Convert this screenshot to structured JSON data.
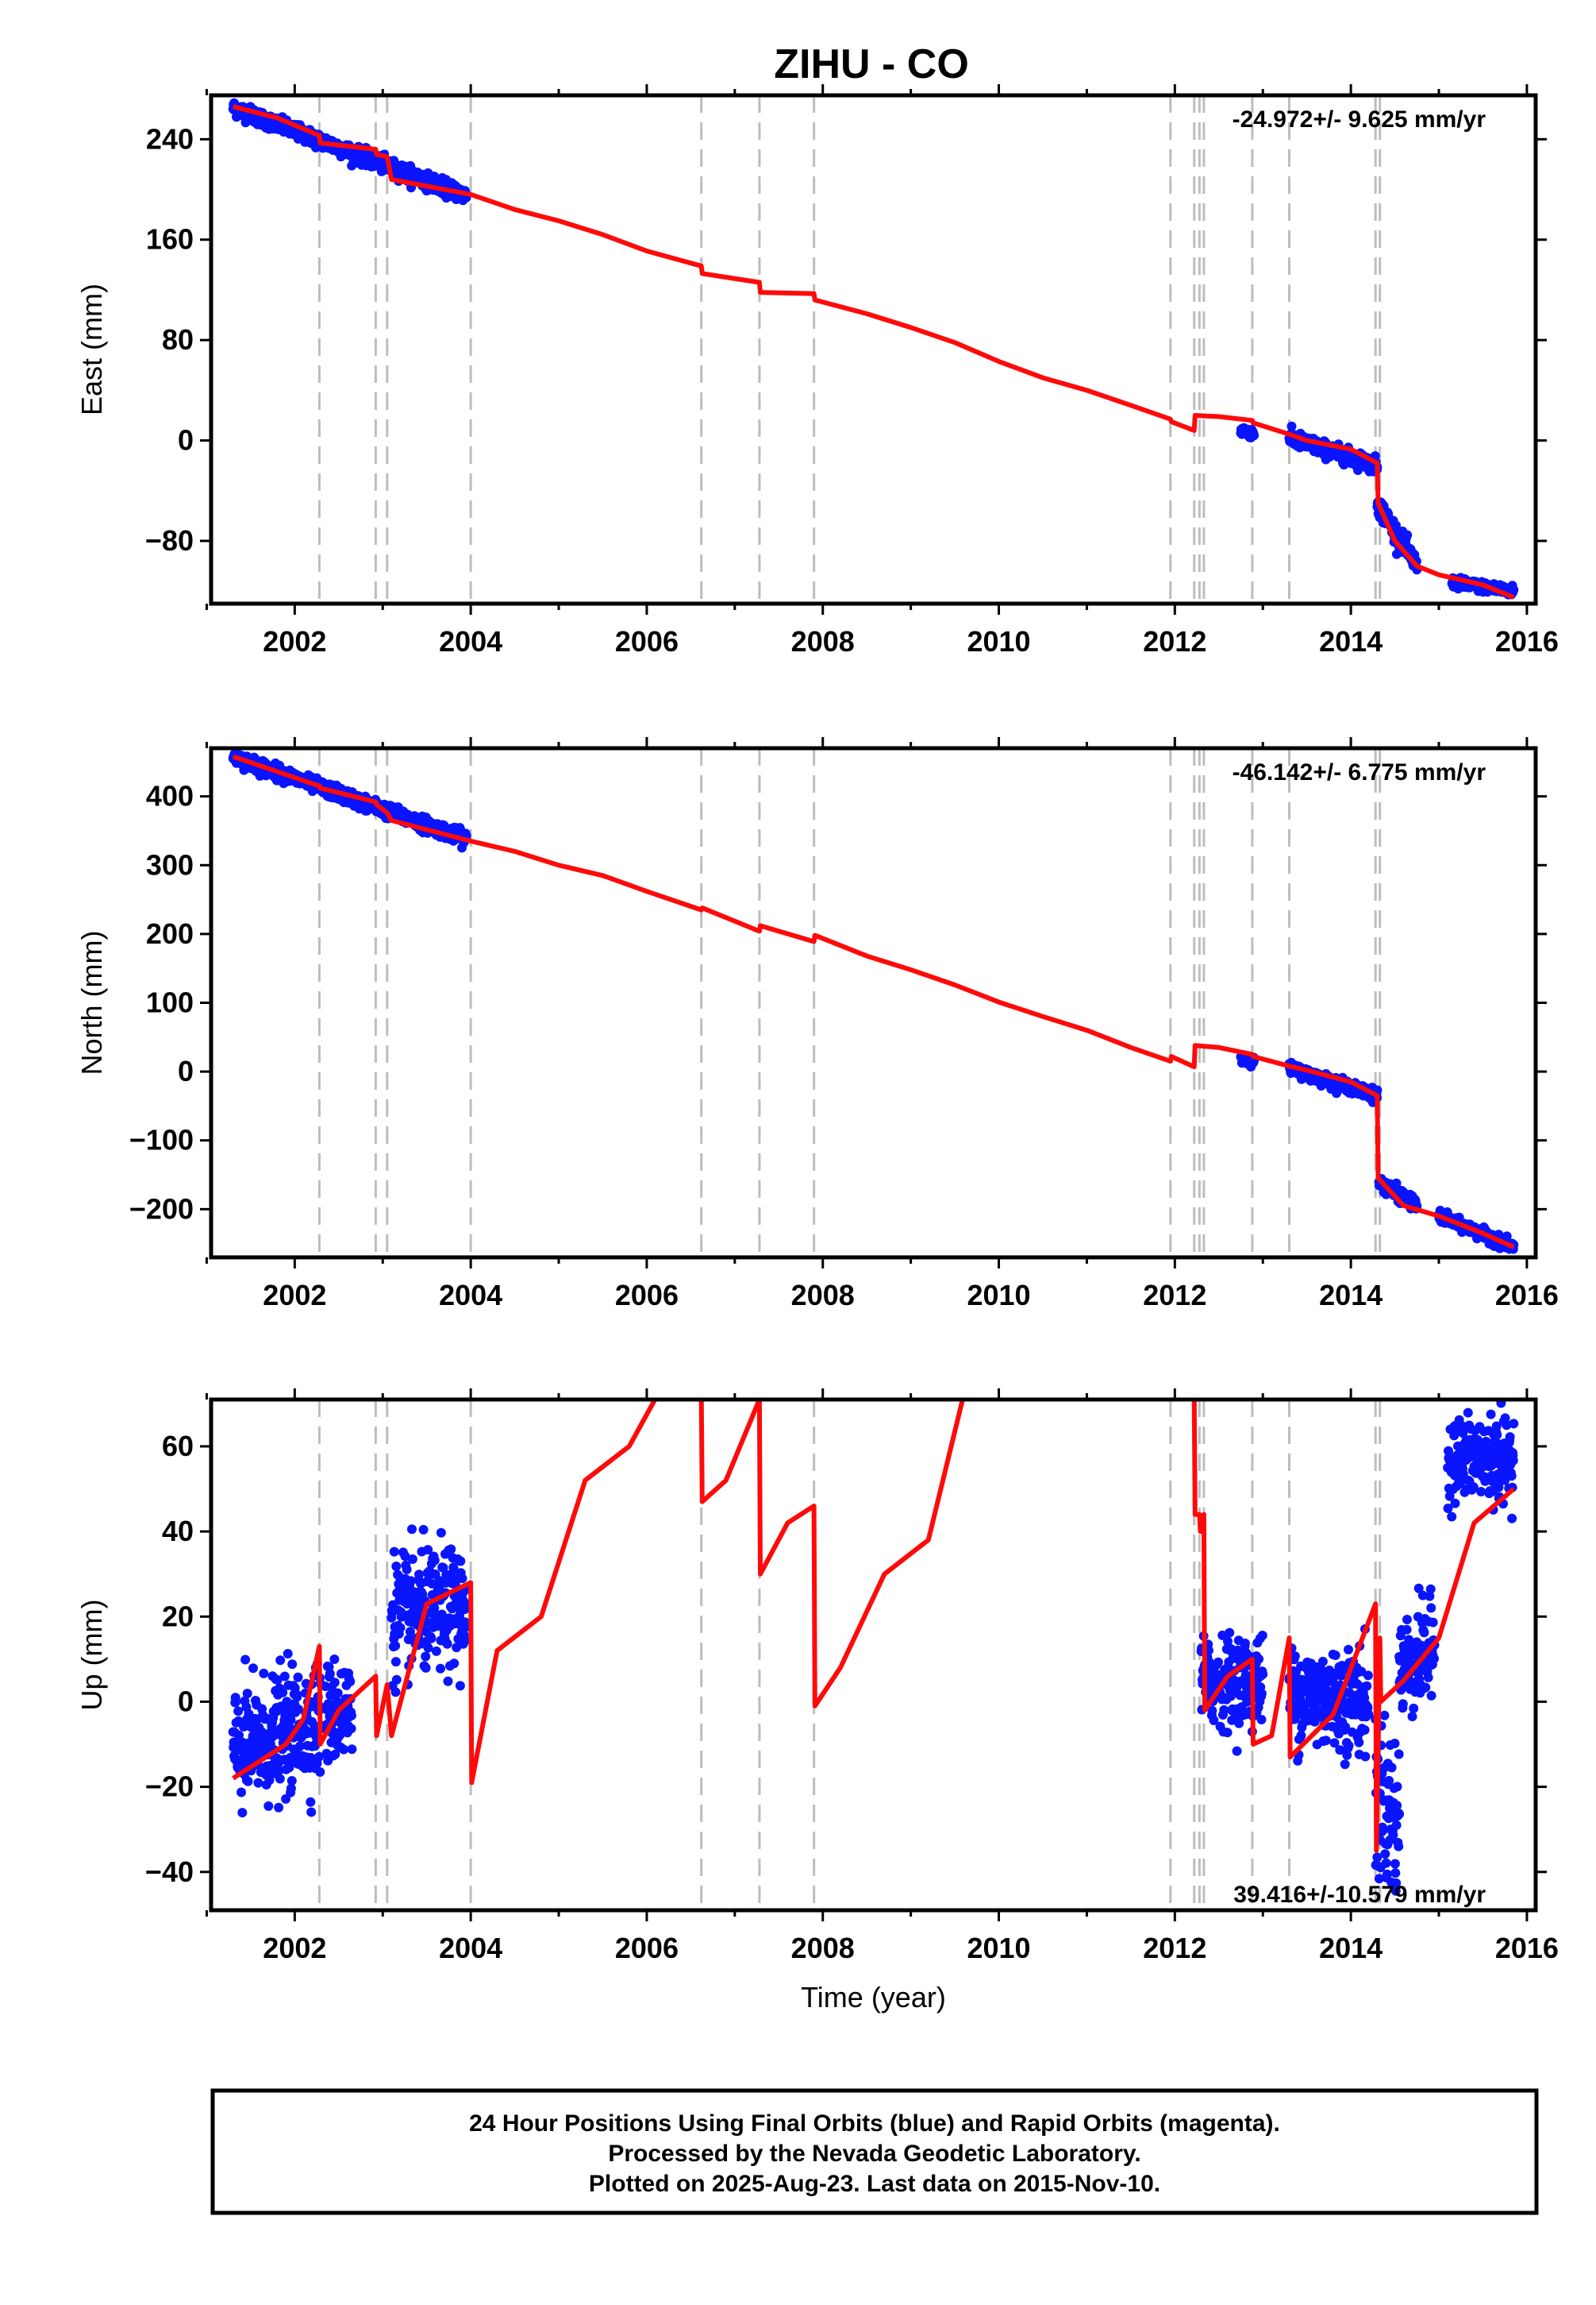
{
  "title": "ZIHU - CO",
  "footer": {
    "line1": "24 Hour Positions Using Final Orbits (blue) and Rapid Orbits (magenta).",
    "line2": "Processed by the Nevada Geodetic Laboratory.",
    "line3": "Plotted on 2025-Aug-23. Last data on 2015-Nov-10."
  },
  "colors": {
    "data": "#0a14ff",
    "model": "#ff0a0a",
    "event_line": "#bdbdbd",
    "frame": "#000000"
  },
  "chart_data": [
    {
      "type": "scatter",
      "ylabel": "East (mm)",
      "xlabel": "",
      "xlim": [
        2001.05,
        2016.1
      ],
      "ylim": [
        -130,
        275
      ],
      "x_ticks": [
        2002,
        2004,
        2006,
        2008,
        2010,
        2012,
        2014,
        2016
      ],
      "y_ticks": [
        -80,
        0,
        80,
        160,
        240
      ],
      "rate_label": "-24.972+/- 9.625 mm/yr",
      "rate_position": "top-right",
      "event_lines": [
        2002.28,
        2002.92,
        2003.05,
        2004.0,
        2006.62,
        2007.28,
        2007.9,
        2011.95,
        2012.22,
        2012.28,
        2012.33,
        2012.88,
        2013.3,
        2014.28,
        2014.33
      ],
      "series": [
        {
          "role": "data",
          "segments": [
            {
              "x": [
                2001.3,
                2003.95
              ],
              "y": [
                265,
                195
              ],
              "noise": 3
            },
            {
              "x": [
                2012.75,
                2012.9
              ],
              "y": [
                8,
                6
              ],
              "noise": 2
            },
            {
              "x": [
                2013.3,
                2014.3
              ],
              "y": [
                2,
                -20
              ],
              "noise": 3
            },
            {
              "x": [
                2014.3,
                2014.75
              ],
              "y": [
                -50,
                -100
              ],
              "noise": 4
            },
            {
              "x": [
                2015.15,
                2015.85
              ],
              "y": [
                -113,
                -120
              ],
              "noise": 2
            }
          ]
        },
        {
          "role": "model",
          "x": [
            2001.3,
            2001.8,
            2002.28,
            2002.29,
            2002.92,
            2002.93,
            2003.05,
            2003.1,
            2004.0,
            2004.5,
            2005.0,
            2005.5,
            2006.0,
            2006.62,
            2006.63,
            2007.28,
            2007.29,
            2007.9,
            2007.91,
            2008.5,
            2009.0,
            2009.5,
            2010.0,
            2010.5,
            2011.0,
            2011.5,
            2011.95,
            2011.96,
            2012.22,
            2012.23,
            2012.5,
            2012.88,
            2012.89,
            2013.3,
            2013.5,
            2014.0,
            2014.3,
            2014.31,
            2014.5,
            2014.75,
            2015.0,
            2015.5,
            2015.85
          ],
          "y": [
            266,
            257,
            243,
            237,
            232,
            228,
            226,
            208,
            196,
            184,
            175,
            164,
            151,
            139,
            133,
            126,
            118,
            117,
            112,
            101,
            90,
            78,
            63,
            50,
            40,
            28,
            17,
            15,
            8,
            20,
            19,
            16,
            14,
            5,
            0,
            -7,
            -18,
            -50,
            -80,
            -100,
            -107,
            -115,
            -125
          ]
        }
      ]
    },
    {
      "type": "scatter",
      "ylabel": "North (mm)",
      "xlabel": "",
      "xlim": [
        2001.05,
        2016.1
      ],
      "ylim": [
        -270,
        470
      ],
      "x_ticks": [
        2002,
        2004,
        2006,
        2008,
        2010,
        2012,
        2014,
        2016
      ],
      "y_ticks": [
        -200,
        -100,
        0,
        100,
        200,
        300,
        400
      ],
      "rate_label": "-46.142+/- 6.775 mm/yr",
      "rate_position": "top-right",
      "event_lines": [
        2002.28,
        2002.92,
        2003.05,
        2004.0,
        2006.62,
        2007.28,
        2007.9,
        2011.95,
        2012.22,
        2012.28,
        2012.33,
        2012.88,
        2013.3,
        2014.28,
        2014.33
      ],
      "series": [
        {
          "role": "data",
          "segments": [
            {
              "x": [
                2001.3,
                2003.95
              ],
              "y": [
                458,
                338
              ],
              "noise": 5
            },
            {
              "x": [
                2012.75,
                2012.9
              ],
              "y": [
                20,
                15
              ],
              "noise": 3
            },
            {
              "x": [
                2013.3,
                2014.3
              ],
              "y": [
                5,
                -35
              ],
              "noise": 4
            },
            {
              "x": [
                2014.32,
                2014.75
              ],
              "y": [
                -160,
                -195
              ],
              "noise": 5
            },
            {
              "x": [
                2015.0,
                2015.85
              ],
              "y": [
                -210,
                -255
              ],
              "noise": 4
            }
          ]
        },
        {
          "role": "model",
          "x": [
            2001.3,
            2002.28,
            2002.29,
            2002.92,
            2002.93,
            2003.05,
            2003.1,
            2004.0,
            2004.5,
            2005.0,
            2005.5,
            2006.0,
            2006.62,
            2006.63,
            2007.28,
            2007.29,
            2007.9,
            2007.91,
            2008.5,
            2009.0,
            2009.5,
            2010.0,
            2010.5,
            2011.0,
            2011.5,
            2011.95,
            2011.96,
            2012.22,
            2012.23,
            2012.5,
            2012.88,
            2012.89,
            2013.3,
            2013.5,
            2014.0,
            2014.3,
            2014.31,
            2014.6,
            2015.0,
            2015.5,
            2015.85
          ],
          "y": [
            458,
            415,
            412,
            392,
            388,
            376,
            365,
            335,
            320,
            300,
            285,
            262,
            235,
            238,
            204,
            212,
            189,
            198,
            168,
            148,
            126,
            101,
            80,
            60,
            35,
            15,
            22,
            7,
            38,
            35,
            25,
            22,
            8,
            2,
            -15,
            -35,
            -155,
            -195,
            -210,
            -235,
            -255
          ]
        }
      ]
    },
    {
      "type": "scatter",
      "ylabel": "Up (mm)",
      "xlabel": "Time (year)",
      "xlim": [
        2001.05,
        2016.1
      ],
      "ylim": [
        -49,
        71
      ],
      "x_ticks": [
        2002,
        2004,
        2006,
        2008,
        2010,
        2012,
        2014,
        2016
      ],
      "y_ticks": [
        -40,
        -20,
        0,
        20,
        40,
        60
      ],
      "rate_label": "39.416+/-10.579 mm/yr",
      "rate_position": "bottom-right",
      "event_lines": [
        2002.28,
        2002.92,
        2003.05,
        2004.0,
        2006.62,
        2007.28,
        2007.9,
        2011.95,
        2012.22,
        2012.28,
        2012.33,
        2012.88,
        2013.3,
        2014.28,
        2014.33
      ],
      "series": [
        {
          "role": "data",
          "segments": [
            {
              "x": [
                2001.3,
                2002.3
              ],
              "y": [
                -12,
                -4
              ],
              "noise": 7
            },
            {
              "x": [
                2002.35,
                2002.65
              ],
              "y": [
                -3,
                -2
              ],
              "noise": 6
            },
            {
              "x": [
                2003.1,
                2003.95
              ],
              "y": [
                20,
                22
              ],
              "noise": 7
            },
            {
              "x": [
                2012.3,
                2013.0
              ],
              "y": [
                5,
                5
              ],
              "noise": 5
            },
            {
              "x": [
                2013.3,
                2014.2
              ],
              "y": [
                2,
                0
              ],
              "noise": 6
            },
            {
              "x": [
                2014.28,
                2014.55
              ],
              "y": [
                -22,
                -28
              ],
              "noise": 10
            },
            {
              "x": [
                2014.55,
                2014.95
              ],
              "y": [
                8,
                12
              ],
              "noise": 6
            },
            {
              "x": [
                2015.1,
                2015.85
              ],
              "y": [
                57,
                57
              ],
              "noise": 5
            }
          ]
        },
        {
          "role": "model",
          "x": [
            2001.3,
            2001.6,
            2001.9,
            2002.1,
            2002.28,
            2002.29,
            2002.5,
            2002.92,
            2002.93,
            2003.05,
            2003.1,
            2003.5,
            2004.0,
            2004.01,
            2004.3,
            2004.8,
            2005.3,
            2005.8,
            2006.2,
            2006.62,
            2006.63,
            2006.9,
            2007.28,
            2007.29,
            2007.6,
            2007.9,
            2007.91,
            2008.2,
            2008.7,
            2009.2,
            2009.6,
            2011.95,
            2012.22,
            2012.23,
            2012.28,
            2012.29,
            2012.33,
            2012.34,
            2012.6,
            2012.88,
            2012.89,
            2013.1,
            2013.3,
            2013.31,
            2013.8,
            2014.28,
            2014.29,
            2014.33,
            2014.34,
            2014.6,
            2015.0,
            2015.4,
            2015.85
          ],
          "y": [
            -18,
            -14,
            -10,
            -4,
            13,
            -10,
            -2,
            6,
            -8,
            4,
            -8,
            23,
            28,
            -19,
            12,
            20,
            52,
            60,
            75,
            72,
            47,
            52,
            71,
            30,
            42,
            46,
            -1,
            8,
            30,
            38,
            72,
            72,
            72,
            44,
            44,
            40,
            44,
            -2,
            6,
            10,
            -10,
            -8,
            15,
            -13,
            -3,
            23,
            -35,
            15,
            0,
            5,
            15,
            42,
            50
          ]
        }
      ]
    }
  ]
}
